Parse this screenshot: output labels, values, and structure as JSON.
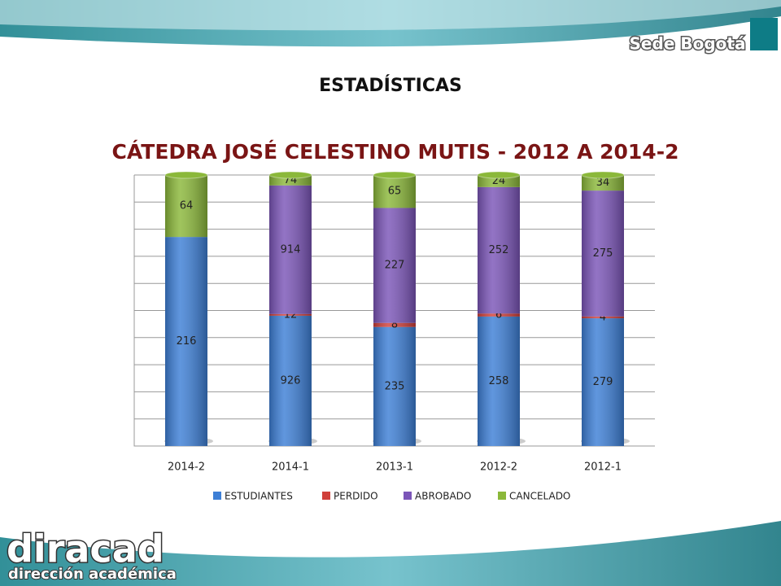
{
  "header": {
    "logo_right": "Sede Bogotá",
    "logo_left_big": "diracad",
    "logo_left_small": "dirección académica"
  },
  "chart_data": {
    "type": "bar",
    "stacking": "percent",
    "title": "ESTADÍSTICAS",
    "subtitle": "CÁTEDRA JOSÉ CELESTINO MUTIS - 2012 A 2014-2",
    "categories": [
      "2014-2",
      "2014-1",
      "2013-1",
      "2012-2",
      "2012-1"
    ],
    "series": [
      {
        "name": "ESTUDIANTES",
        "color": "#3d7fd6",
        "values": [
          216,
          926,
          235,
          258,
          279
        ]
      },
      {
        "name": "PERDIDO",
        "color": "#d0403a",
        "values": [
          null,
          12,
          8,
          6,
          4
        ]
      },
      {
        "name": "ABROBADO",
        "color": "#7b55b8",
        "values": [
          null,
          914,
          227,
          252,
          275
        ]
      },
      {
        "name": "CANCELADO",
        "color": "#8bb83a",
        "values": [
          64,
          74,
          65,
          24,
          34
        ]
      }
    ],
    "ylim": [
      0,
      100
    ],
    "yticks": [
      0,
      10,
      20,
      30,
      40,
      50,
      60,
      70,
      80,
      90,
      100
    ],
    "show_ytick_labels": false,
    "grid": true,
    "legend": "bottom"
  }
}
